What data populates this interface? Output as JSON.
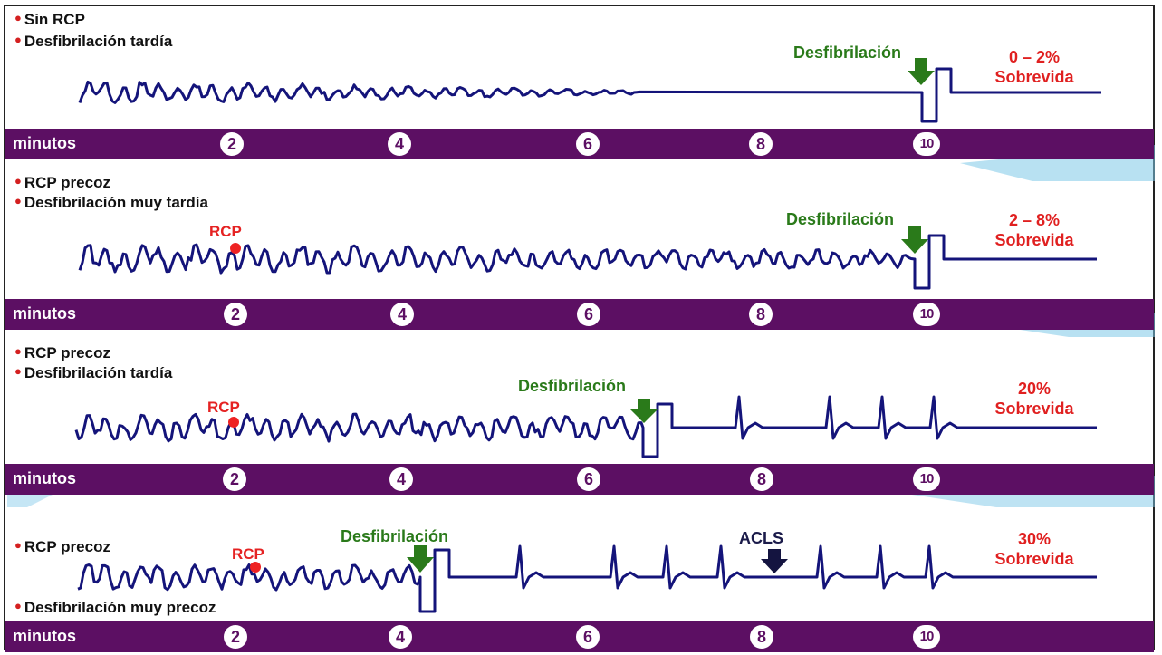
{
  "panels": [
    {
      "bullets": [
        "Sin RCP",
        "Desfibrilación tardía"
      ],
      "defib_label": "Desfibrilación",
      "survival": {
        "value": "0 – 2%",
        "label": "Sobrevida"
      }
    },
    {
      "bullets": [
        "RCP precoz",
        "Desfibrilación muy tardía"
      ],
      "rcp_label": "RCP",
      "defib_label": "Desfibrilación",
      "survival": {
        "value": "2 – 8%",
        "label": "Sobrevida"
      }
    },
    {
      "bullets": [
        "RCP precoz",
        "Desfibrilación tardía"
      ],
      "rcp_label": "RCP",
      "defib_label": "Desfibrilación",
      "survival": {
        "value": "20%",
        "label": "Sobrevida"
      }
    },
    {
      "bullets": [
        "RCP precoz",
        "Desfibrilación muy precoz"
      ],
      "rcp_label": "RCP",
      "defib_label": "Desfibrilación",
      "acls_label": "ACLS",
      "survival": {
        "value": "30%",
        "label": "Sobrevida"
      }
    }
  ],
  "axis": {
    "label": "minutos",
    "ticks": [
      "2",
      "4",
      "6",
      "8",
      "10"
    ]
  },
  "colors": {
    "timeline_bar": "#5c0f63",
    "trace": "#14147a",
    "defib_arrow": "#2a7a1a",
    "acls_arrow": "#141440",
    "rcp": "#e52222",
    "survival_text": "#e02020"
  }
}
